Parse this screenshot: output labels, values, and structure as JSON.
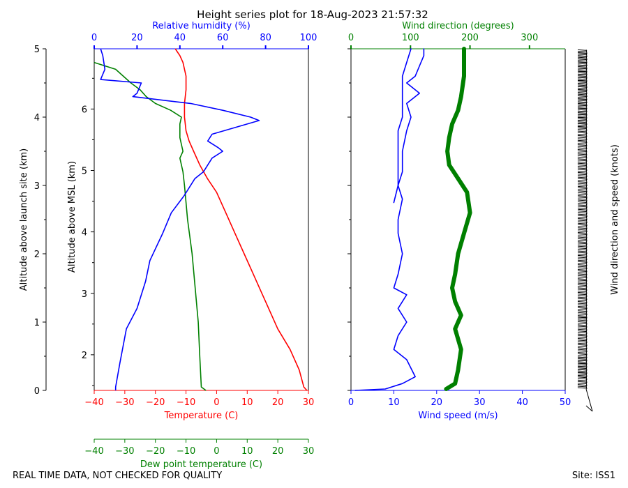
{
  "title": "Height series plot for 18-Aug-2023 21:57:32",
  "footer": {
    "left": "REAL TIME DATA, NOT CHECKED FOR QUALITY",
    "right": "Site: ISS1"
  },
  "colors": {
    "temperature": "#ff0000",
    "dewpoint": "#008000",
    "rh": "#0000ff",
    "wspd": "#0000ff",
    "wdir": "#008000",
    "barb": "#000000"
  },
  "chart_data": [
    {
      "type": "line",
      "id": "thermo",
      "axes": {
        "temperature": {
          "label": "Temperature (C)",
          "range": [
            -40,
            30
          ],
          "ticks": [
            -40,
            -30,
            -20,
            -10,
            0,
            10,
            20,
            30
          ]
        },
        "dewpoint": {
          "label": "Dew point temperature (C)",
          "range": [
            -40,
            30
          ],
          "ticks": [
            -40,
            -30,
            -20,
            -10,
            0,
            10,
            20,
            30
          ]
        },
        "rh": {
          "label": "Relative humidity (%)",
          "range": [
            0,
            100
          ],
          "ticks": [
            0,
            20,
            40,
            60,
            80,
            100
          ]
        },
        "alt_site": {
          "label": "Altitude above launch site (km)",
          "range": [
            0,
            5
          ],
          "ticks": [
            0,
            1,
            2,
            3,
            4,
            5
          ]
        },
        "alt_msl": {
          "label": "Altitude above MSL (km)",
          "range": [
            1.42,
            6.98
          ],
          "ticks": [
            2,
            3,
            4,
            5,
            6
          ]
        }
      },
      "series": [
        {
          "key": "temperature",
          "x_axis": "temperature",
          "points": [
            [
              29.5,
              0
            ],
            [
              28.5,
              0.05
            ],
            [
              27,
              0.3
            ],
            [
              24,
              0.6
            ],
            [
              20,
              0.9
            ],
            [
              17,
              1.2
            ],
            [
              15,
              1.4
            ],
            [
              12,
              1.7
            ],
            [
              9,
              2.0
            ],
            [
              6,
              2.3
            ],
            [
              3,
              2.6
            ],
            [
              0,
              2.9
            ],
            [
              -3,
              3.1
            ],
            [
              -5.5,
              3.3
            ],
            [
              -7.5,
              3.5
            ],
            [
              -9,
              3.65
            ],
            [
              -10,
              3.8
            ],
            [
              -10.5,
              4.0
            ],
            [
              -10.5,
              4.2
            ],
            [
              -10,
              4.4
            ],
            [
              -10,
              4.6
            ],
            [
              -11,
              4.8
            ],
            [
              -12,
              4.9
            ],
            [
              -13.5,
              5.0
            ]
          ]
        },
        {
          "key": "dewpoint",
          "x_axis": "dewpoint",
          "points": [
            [
              -3.5,
              0
            ],
            [
              -5,
              0.05
            ],
            [
              -5.5,
              0.5
            ],
            [
              -6,
              1.0
            ],
            [
              -7,
              1.5
            ],
            [
              -8,
              2.0
            ],
            [
              -9.5,
              2.5
            ],
            [
              -10.5,
              3.0
            ],
            [
              -11,
              3.2
            ],
            [
              -12,
              3.4
            ],
            [
              -11,
              3.5
            ],
            [
              -12,
              3.7
            ],
            [
              -12,
              3.9
            ],
            [
              -11.5,
              4.0
            ],
            [
              -15,
              4.1
            ],
            [
              -20,
              4.2
            ],
            [
              -23,
              4.3
            ],
            [
              -25,
              4.4
            ],
            [
              -28,
              4.5
            ],
            [
              -33,
              4.7
            ],
            [
              -40,
              4.8
            ]
          ]
        },
        {
          "key": "rh",
          "x_axis": "rh",
          "points": [
            [
              10,
              0
            ],
            [
              10,
              0.05
            ],
            [
              12,
              0.4
            ],
            [
              15,
              0.9
            ],
            [
              20,
              1.2
            ],
            [
              24,
              1.6
            ],
            [
              26,
              1.9
            ],
            [
              32,
              2.3
            ],
            [
              36,
              2.6
            ],
            [
              42,
              2.85
            ],
            [
              47,
              3.1
            ],
            [
              51,
              3.2
            ],
            [
              55,
              3.4
            ],
            [
              60,
              3.5
            ],
            [
              58,
              3.55
            ],
            [
              53,
              3.65
            ],
            [
              55,
              3.75
            ],
            [
              77,
              3.95
            ],
            [
              73,
              4.0
            ],
            [
              60,
              4.1
            ],
            [
              45,
              4.2
            ],
            [
              18,
              4.3
            ],
            [
              20,
              4.35
            ],
            [
              22,
              4.5
            ],
            [
              3,
              4.55
            ],
            [
              5,
              4.7
            ],
            [
              4,
              4.9
            ],
            [
              3,
              5.0
            ]
          ]
        }
      ]
    },
    {
      "type": "line",
      "id": "wind",
      "axes": {
        "wspd": {
          "label": "Wind speed (m/s)",
          "range": [
            0,
            50
          ],
          "ticks": [
            0,
            10,
            20,
            30,
            40,
            50
          ]
        },
        "wdir": {
          "label": "Wind direction (degrees)",
          "range": [
            0,
            360
          ],
          "ticks": [
            0,
            100,
            200,
            300
          ]
        },
        "barbs": {
          "label": "Wind direction and speed (knots)"
        }
      },
      "series": [
        {
          "key": "wspd",
          "x_axis": "wspd",
          "points": [
            [
              1,
              0
            ],
            [
              8,
              0.02
            ],
            [
              12,
              0.1
            ],
            [
              15,
              0.2
            ],
            [
              13,
              0.45
            ],
            [
              10,
              0.6
            ],
            [
              11,
              0.8
            ],
            [
              13,
              1.0
            ],
            [
              11,
              1.2
            ],
            [
              12,
              1.3
            ],
            [
              13,
              1.4
            ],
            [
              10,
              1.5
            ],
            [
              11,
              1.7
            ],
            [
              12,
              2.0
            ],
            [
              11,
              2.3
            ],
            [
              11,
              2.5
            ],
            [
              12,
              2.8
            ],
            [
              11,
              3.0
            ],
            [
              12,
              3.2
            ],
            [
              12,
              3.5
            ],
            [
              13,
              3.8
            ],
            [
              14,
              4.0
            ],
            [
              13,
              4.2
            ],
            [
              16,
              4.35
            ],
            [
              13,
              4.5
            ],
            [
              15,
              4.6
            ],
            [
              16,
              4.75
            ],
            [
              17,
              4.9
            ],
            [
              17,
              5.0
            ]
          ]
        },
        {
          "key": "wspd",
          "x_axis": "wspd",
          "points": [
            [
              10,
              2.75
            ],
            [
              11,
              3.0
            ],
            [
              11,
              3.3
            ],
            [
              11,
              3.6
            ],
            [
              11,
              3.8
            ],
            [
              12,
              4.0
            ],
            [
              12,
              4.3
            ],
            [
              12,
              4.6
            ],
            [
              13,
              4.8
            ],
            [
              14,
              5.0
            ]
          ]
        },
        {
          "key": "wdir",
          "x_axis": "wdir",
          "points": [
            [
              160,
              0.02
            ],
            [
              175,
              0.1
            ],
            [
              180,
              0.3
            ],
            [
              185,
              0.6
            ],
            [
              175,
              0.9
            ],
            [
              185,
              1.1
            ],
            [
              175,
              1.3
            ],
            [
              170,
              1.5
            ],
            [
              175,
              1.7
            ],
            [
              180,
              2.0
            ],
            [
              190,
              2.3
            ],
            [
              200,
              2.6
            ],
            [
              195,
              2.9
            ],
            [
              180,
              3.1
            ],
            [
              165,
              3.3
            ],
            [
              162,
              3.5
            ],
            [
              165,
              3.7
            ],
            [
              170,
              3.9
            ],
            [
              180,
              4.1
            ],
            [
              185,
              4.3
            ],
            [
              190,
              4.6
            ],
            [
              190,
              4.8
            ],
            [
              190,
              5.0
            ]
          ]
        }
      ]
    }
  ]
}
